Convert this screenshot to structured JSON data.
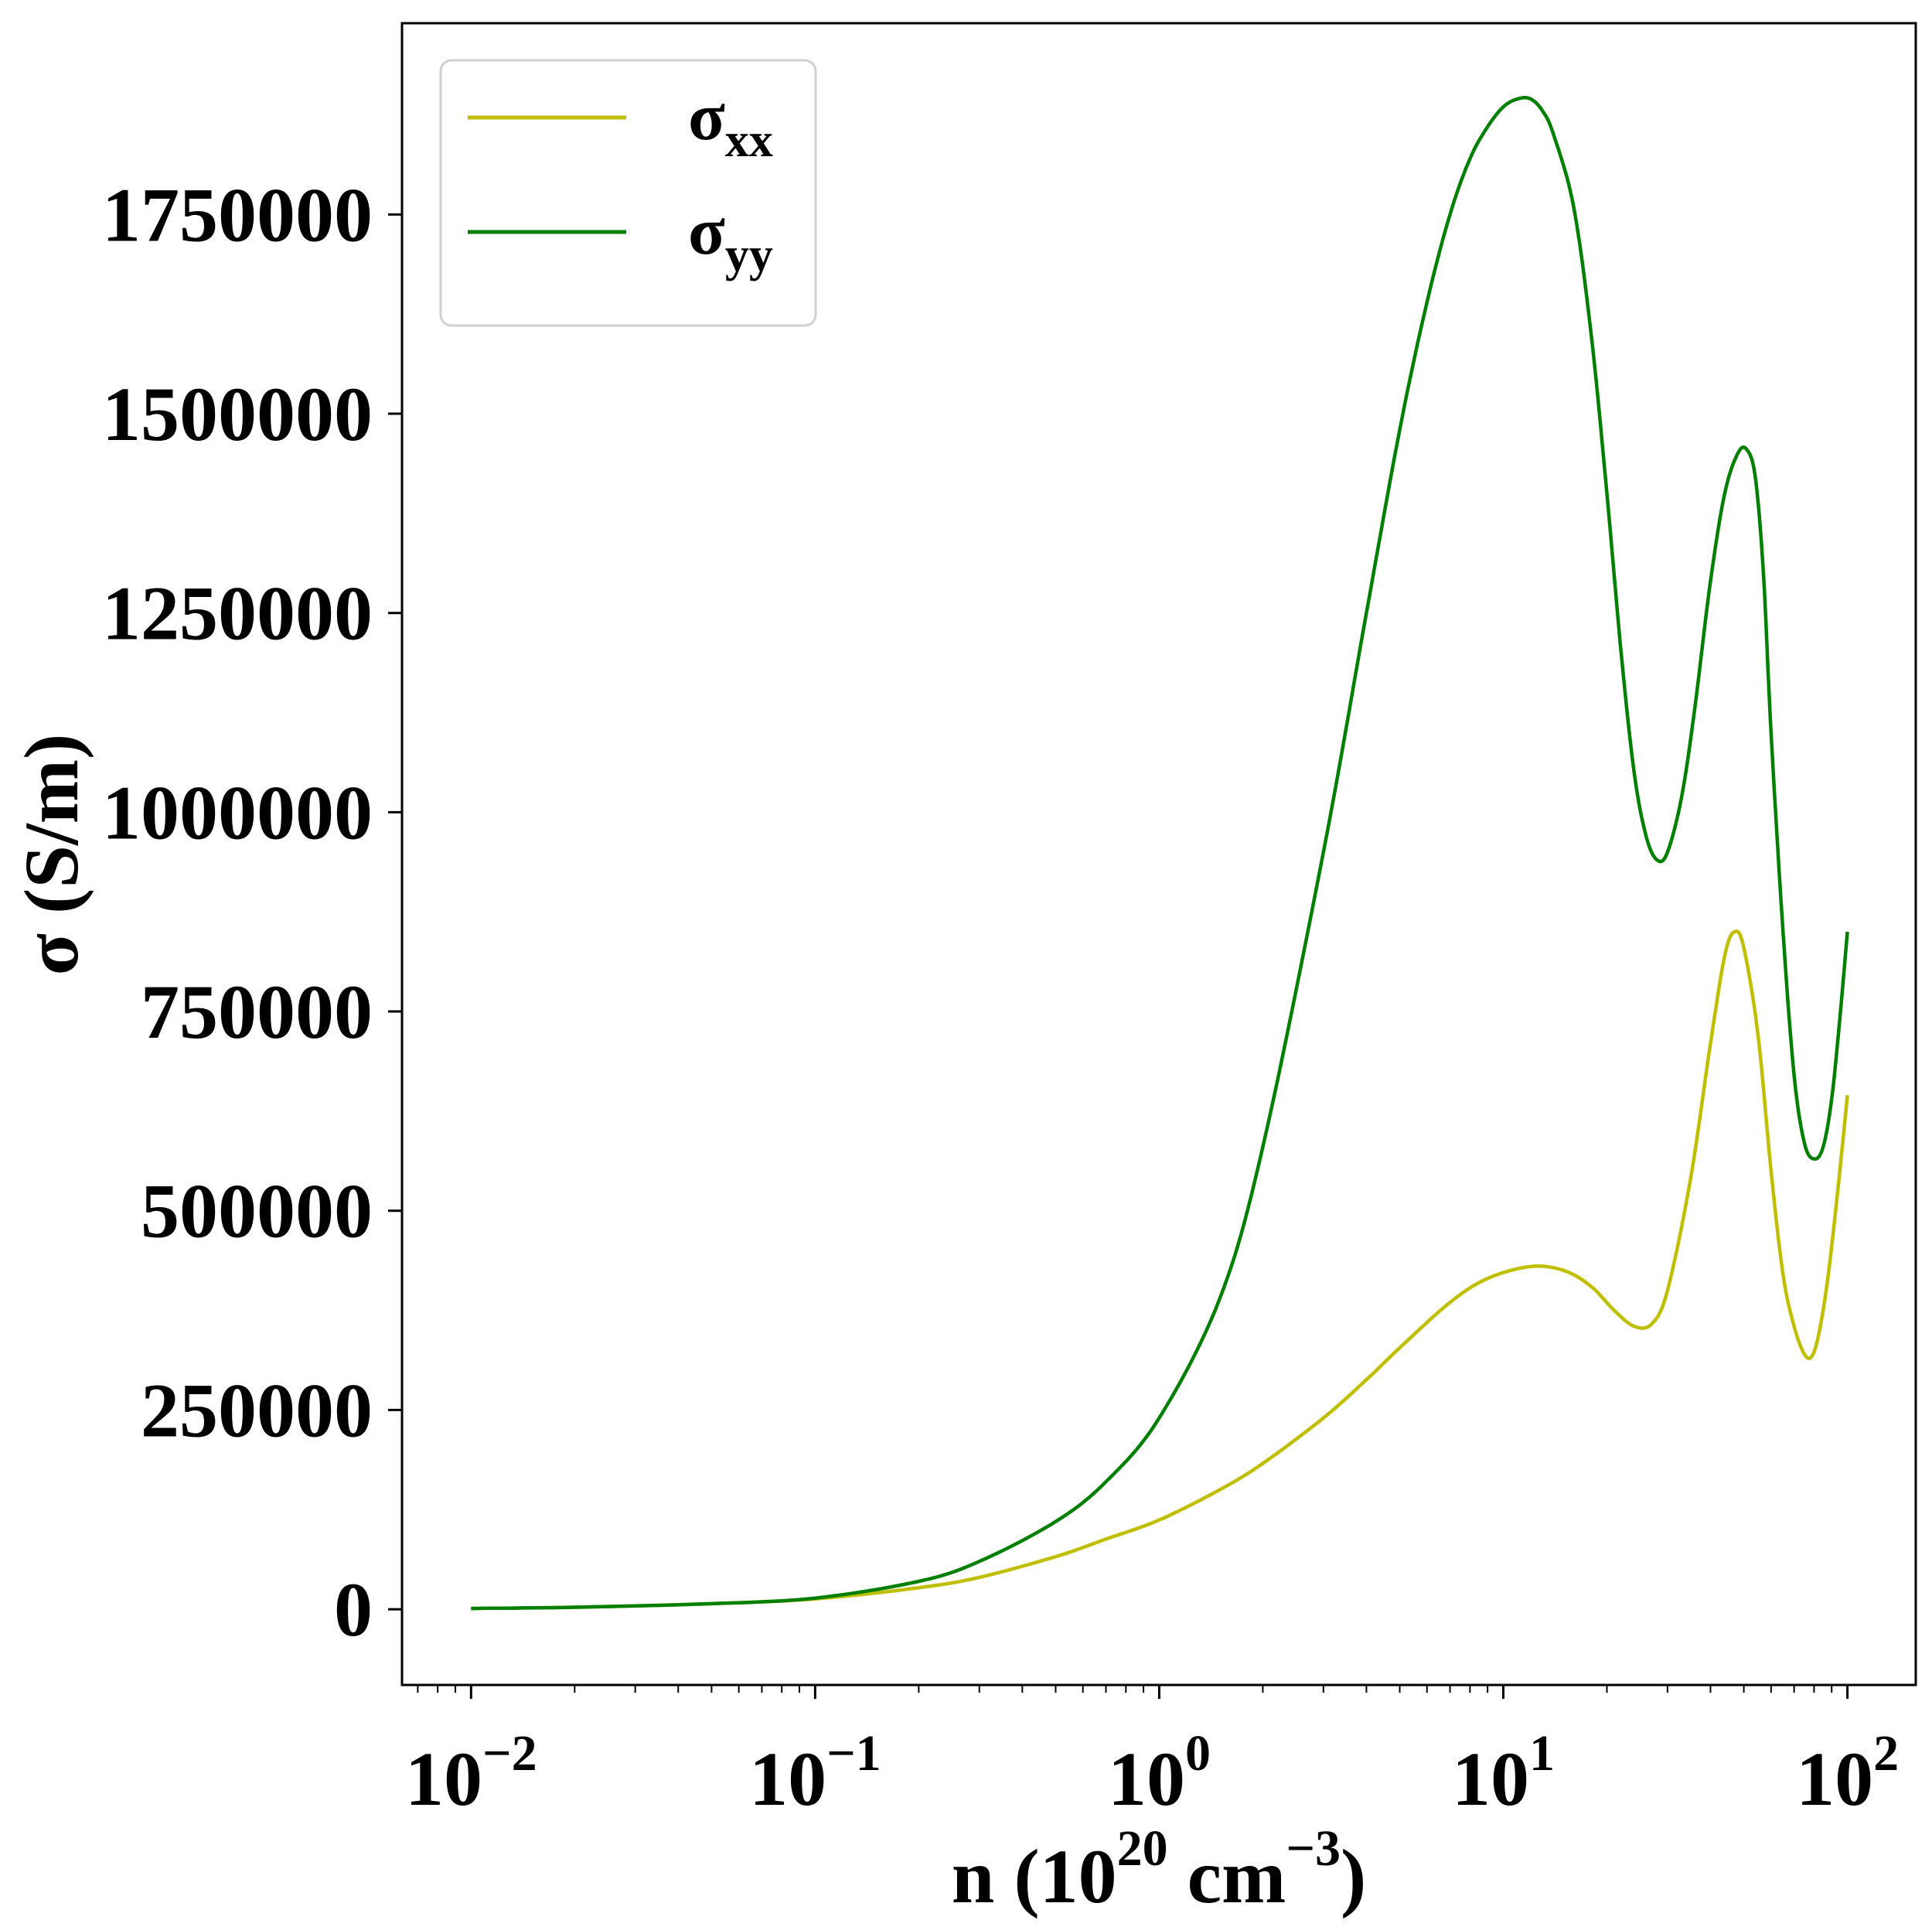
{
  "chart_data": {
    "type": "line",
    "x_scale": "log",
    "xlabel": {
      "base": "n (10",
      "sup": "20",
      "mid": " cm",
      "sup2": "−3",
      "end": ")"
    },
    "ylabel": "σ (S/m)",
    "xlim": [
      0.0063,
      158
    ],
    "ylim": [
      -95000,
      1990000
    ],
    "x_ticks": [
      {
        "value": 0.01,
        "base": "10",
        "exp": "−2"
      },
      {
        "value": 0.1,
        "base": "10",
        "exp": "−1"
      },
      {
        "value": 1,
        "base": "10",
        "exp": "0"
      },
      {
        "value": 10,
        "base": "10",
        "exp": "1"
      },
      {
        "value": 100,
        "base": "10",
        "exp": "2"
      }
    ],
    "y_ticks": [
      {
        "value": 0,
        "label": "0"
      },
      {
        "value": 250000,
        "label": "250000"
      },
      {
        "value": 500000,
        "label": "500000"
      },
      {
        "value": 750000,
        "label": "750000"
      },
      {
        "value": 1000000,
        "label": "1000000"
      },
      {
        "value": 1250000,
        "label": "1250000"
      },
      {
        "value": 1500000,
        "label": "1500000"
      },
      {
        "value": 1750000,
        "label": "1750000"
      }
    ],
    "grid": false,
    "legend": {
      "position": "top-left"
    },
    "series": [
      {
        "name": "σ",
        "sub": "xx",
        "color": "#bfbf00",
        "x": [
          0.01,
          0.02,
          0.05,
          0.1,
          0.2,
          0.3,
          0.5,
          0.7,
          1.0,
          1.5,
          2.0,
          3.0,
          4.0,
          5.0,
          7.0,
          9.0,
          12.0,
          15.0,
          18.0,
          21.0,
          24.0,
          27.0,
          30.0,
          35.0,
          40.0,
          44.0,
          47.0,
          50.0,
          55.0,
          60.0,
          65.0,
          70.0,
          75.0,
          79.0,
          83.0,
          88.0,
          94.0,
          100.0
        ],
        "y": [
          1000,
          2500,
          7000,
          13000,
          27000,
          40000,
          66000,
          88000,
          112000,
          150000,
          183000,
          240000,
          288000,
          328000,
          385000,
          415000,
          430000,
          425000,
          405000,
          375000,
          355000,
          358000,
          400000,
          540000,
          710000,
          820000,
          850000,
          830000,
          720000,
          550000,
          420000,
          355000,
          320000,
          318000,
          350000,
          420000,
          530000,
          645000
        ]
      },
      {
        "name": "σ",
        "sub": "yy",
        "color": "#007f00",
        "x": [
          0.01,
          0.02,
          0.05,
          0.1,
          0.2,
          0.3,
          0.5,
          0.7,
          1.0,
          1.5,
          2.0,
          3.0,
          4.0,
          5.0,
          6.0,
          7.0,
          8.0,
          9.0,
          10.0,
          11.0,
          12.0,
          13.0,
          14.0,
          16.0,
          18.0,
          20.0,
          22.0,
          24.0,
          26.0,
          28.0,
          30.0,
          33.0,
          36.0,
          40.0,
          44.0,
          48.0,
          51.0,
          54.0,
          57.0,
          60.0,
          65.0,
          70.0,
          75.0,
          80.0,
          85.0,
          90.0,
          95.0,
          100.0
        ],
        "y": [
          1000,
          2500,
          7000,
          14000,
          35000,
          60000,
          110000,
          160000,
          240000,
          390000,
          580000,
          950000,
          1250000,
          1480000,
          1640000,
          1750000,
          1820000,
          1860000,
          1885000,
          1895000,
          1895000,
          1880000,
          1850000,
          1760000,
          1600000,
          1400000,
          1200000,
          1050000,
          970000,
          940000,
          950000,
          1020000,
          1130000,
          1290000,
          1400000,
          1450000,
          1455000,
          1420000,
          1300000,
          1100000,
          850000,
          670000,
          585000,
          565000,
          580000,
          640000,
          740000,
          850000
        ]
      }
    ]
  }
}
